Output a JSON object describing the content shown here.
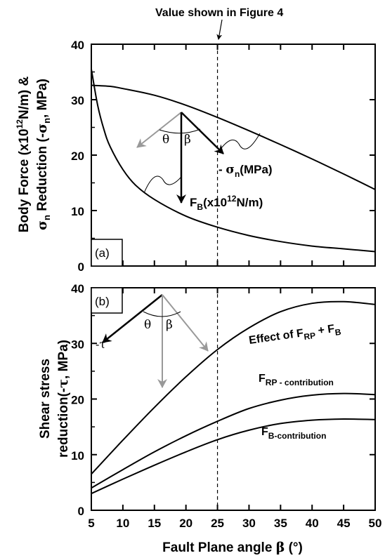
{
  "chart_data": [
    {
      "panel": "a",
      "type": "line",
      "panel_label": "(a)",
      "ylabel_line1": "Body Force (x10",
      "ylabel_line1_sup": "12",
      "ylabel_line1_end": "N/m) &",
      "ylabel_line2_sigma": "σ",
      "ylabel_line2_sub": "n",
      "ylabel_line2_mid": " Reduction (-",
      "ylabel_line2_sigma2": "σ",
      "ylabel_line2_sub2": "n",
      "ylabel_line2_end": ", MPa)",
      "xlim": [
        5,
        50
      ],
      "ylim": [
        0,
        40
      ],
      "yticks": [
        "0",
        "10",
        "20",
        "30",
        "40"
      ],
      "series": [
        {
          "key": "sigma_n",
          "x": [
            5,
            8,
            10,
            15,
            20,
            25,
            30,
            35,
            40,
            45,
            50
          ],
          "y": [
            32.6,
            32.4,
            32.0,
            30.8,
            29.0,
            26.8,
            24.4,
            21.9,
            19.3,
            16.6,
            13.8
          ]
        },
        {
          "key": "F_B",
          "x": [
            5,
            6,
            7,
            8,
            10,
            12,
            15,
            20,
            25,
            30,
            35,
            40,
            45,
            50
          ],
          "y": [
            35.5,
            29.0,
            24.6,
            21.5,
            17.4,
            14.6,
            12.0,
            9.0,
            7.0,
            5.5,
            4.4,
            3.6,
            3.1,
            2.6
          ]
        }
      ],
      "annotations": {
        "sigma_label_prefix": "- ",
        "sigma_label_sigma": "σ",
        "sigma_label_sub": "n",
        "sigma_label_unit": "(MPa)",
        "fb_label_main": "F",
        "fb_label_sub": "B",
        "fb_label_unit": "(x10",
        "fb_label_sup": "12",
        "fb_label_end": "N/m)",
        "theta": "θ",
        "beta": "β"
      }
    },
    {
      "panel": "b",
      "type": "line",
      "panel_label": "(b)",
      "ylabel_line1": "Shear stress",
      "ylabel_line2": "reduction(-",
      "ylabel_line2_tau": "τ",
      "ylabel_line2_end": ", MPa)",
      "xlabel": "Fault Plane angle ",
      "xlabel_beta": "β",
      "xlabel_unit": " (°)",
      "xlim": [
        5,
        50
      ],
      "ylim": [
        0,
        40
      ],
      "xticks": [
        "5",
        "10",
        "15",
        "20",
        "25",
        "30",
        "35",
        "40",
        "45",
        "50"
      ],
      "yticks": [
        "0",
        "10",
        "20",
        "30",
        "40"
      ],
      "series": [
        {
          "key": "total",
          "x": [
            5,
            10,
            15,
            20,
            25,
            30,
            35,
            40,
            45,
            50
          ],
          "y": [
            6.5,
            12.6,
            18.5,
            24.0,
            28.9,
            32.8,
            35.7,
            37.2,
            37.5,
            37.0
          ]
        },
        {
          "key": "F_RP",
          "x": [
            5,
            10,
            15,
            20,
            25,
            30,
            35,
            40,
            45,
            50
          ],
          "y": [
            4.0,
            7.3,
            10.5,
            13.4,
            16.0,
            18.3,
            19.8,
            20.7,
            21.0,
            20.8
          ]
        },
        {
          "key": "F_B",
          "x": [
            5,
            10,
            15,
            20,
            25,
            30,
            35,
            40,
            45,
            50
          ],
          "y": [
            3.0,
            5.6,
            8.1,
            10.5,
            12.7,
            14.4,
            15.6,
            16.2,
            16.4,
            16.3
          ]
        }
      ],
      "annotations": {
        "total_prefix": "Effect of F",
        "total_sub1": "RP",
        "total_mid": " + F",
        "total_sub2": "B",
        "frp_main": "F",
        "frp_sub": "RP - contribution",
        "fb_main": "F",
        "fb_sub": "B-contribution",
        "tau_label": "-τ",
        "theta": "θ",
        "beta": "β"
      }
    }
  ],
  "top_annotation": "Value shown in Figure 4",
  "marker_x": 25
}
